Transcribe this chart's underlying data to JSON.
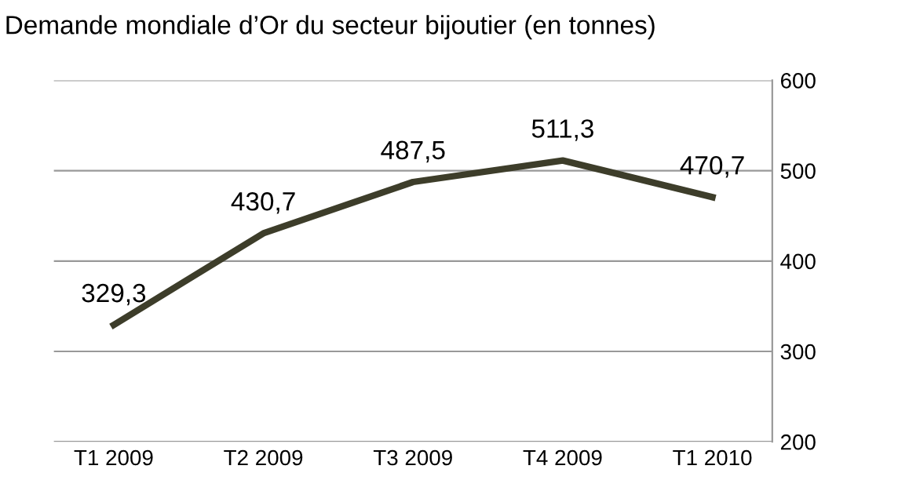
{
  "chart_data": {
    "type": "line",
    "title": "Demande mondiale d’Or du secteur bijoutier (en tonnes)",
    "categories": [
      "T1 2009",
      "T2 2009",
      "T3 2009",
      "T4 2009",
      "T1 2010"
    ],
    "series": [
      {
        "color": "#3d3d2a",
        "values": [
          329.3,
          430.7,
          487.5,
          511.3,
          470.7
        ],
        "value_labels": [
          "329,3",
          "430,7",
          "487,5",
          "511,3",
          "470,7"
        ]
      }
    ],
    "ylim": [
      200,
      600
    ],
    "yticks": [
      200,
      300,
      400,
      500,
      600
    ],
    "grid": "y",
    "marker": "none",
    "line_style": "solid"
  }
}
